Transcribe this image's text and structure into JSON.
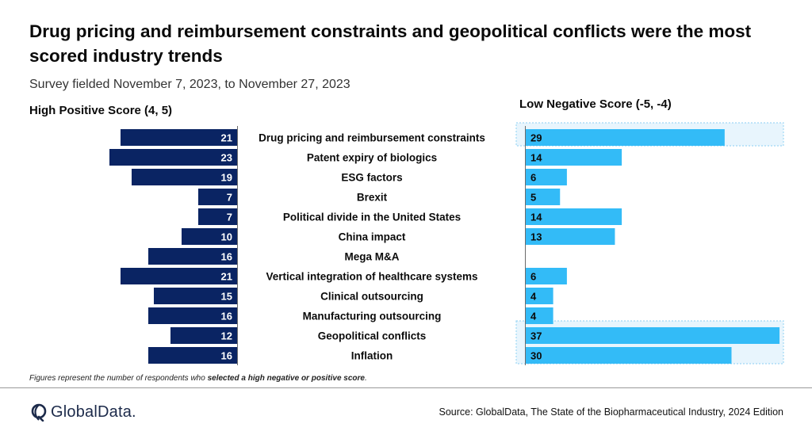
{
  "title": "Drug pricing and reimbursement constraints and geopolitical conflicts were the most scored industry trends",
  "subtitle": "Survey fielded November 7, 2023, to November 27, 2023",
  "footnote": {
    "prefix": "Figures represent the number of respondents who ",
    "emphasis": "selected a high negative or positive score",
    "suffix": "."
  },
  "source": "Source: GlobalData, The State of the Biopharmaceutical Industry, 2024 Edition",
  "logo_text": "GlobalData.",
  "colors": {
    "positive": "#0a2463",
    "negative": "#33bbf7",
    "highlight": "#e8f5fd",
    "highlight_border": "#9fd8f5"
  },
  "chart_data": {
    "type": "bar",
    "categories": [
      "Drug pricing and  reimbursement constraints",
      "Patent expiry of biologics",
      "ESG factors",
      "Brexit",
      "Political divide in the United States",
      "China impact",
      "Mega M&A",
      "Vertical integration of healthcare systems",
      "Clinical outsourcing",
      "Manufacturing outsourcing",
      "Geopolitical conflicts",
      "Inflation"
    ],
    "series": [
      {
        "name": "High Positive Score (4, 5)",
        "values": [
          21,
          23,
          19,
          7,
          7,
          10,
          16,
          21,
          15,
          16,
          12,
          16
        ]
      },
      {
        "name": "Low Negative Score (-5, -4)",
        "values": [
          29,
          14,
          6,
          5,
          14,
          13,
          null,
          6,
          4,
          4,
          37,
          30
        ]
      }
    ],
    "highlighted_categories": [
      "Drug pricing and  reimbursement constraints",
      "Geopolitical conflicts",
      "Inflation"
    ]
  }
}
